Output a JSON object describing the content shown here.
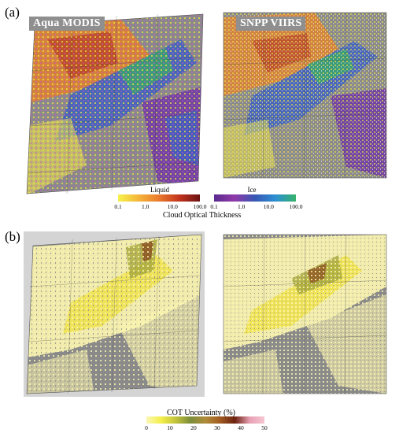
{
  "panel_a": {
    "label": "(a)",
    "left_title": "Aqua MODIS",
    "right_title": "SNPP VIIRS",
    "colorbar": {
      "title": "Cloud Optical Thickness",
      "liquid": {
        "label": "Liquid",
        "ticks": [
          "0.1",
          "1.0",
          "10.0",
          "100.0"
        ],
        "colors": [
          "#f7f24a",
          "#f4b53a",
          "#ea7a2e",
          "#c2331d",
          "#6b1414"
        ]
      },
      "ice": {
        "label": "Ice",
        "ticks": [
          "0.1",
          "1.0",
          "10.0",
          "100.0"
        ],
        "colors": [
          "#5b2a8f",
          "#8f3aa8",
          "#3757b4",
          "#2e8fd3",
          "#35b36a"
        ]
      }
    }
  },
  "panel_b": {
    "label": "(b)",
    "colorbar": {
      "title": "COT Uncertainty (%)",
      "ticks": [
        "0",
        "10",
        "20",
        "30",
        "40",
        "50"
      ],
      "colors": [
        "#fbf7b5",
        "#f3ef4a",
        "#c2c23c",
        "#7c8d3a",
        "#b08c3a",
        "#a05a20",
        "#6b2210",
        "#e8a0b4",
        "#f5c6d3"
      ]
    }
  },
  "map_colors": {
    "background_gray": "#d4d4d4",
    "cloud_free_gray": "#8a8a8a",
    "liquid_yellow": "#f2e84a",
    "liquid_orange": "#e2812d",
    "liquid_red": "#b0301f",
    "ice_blue": "#3f62c0",
    "ice_purple": "#6f3aa3",
    "ice_green": "#3aa86a",
    "unc_pale": "#fbf5b0",
    "unc_yellow": "#eee24a",
    "unc_olive": "#a8a83a",
    "unc_brown": "#8a4a1a"
  }
}
